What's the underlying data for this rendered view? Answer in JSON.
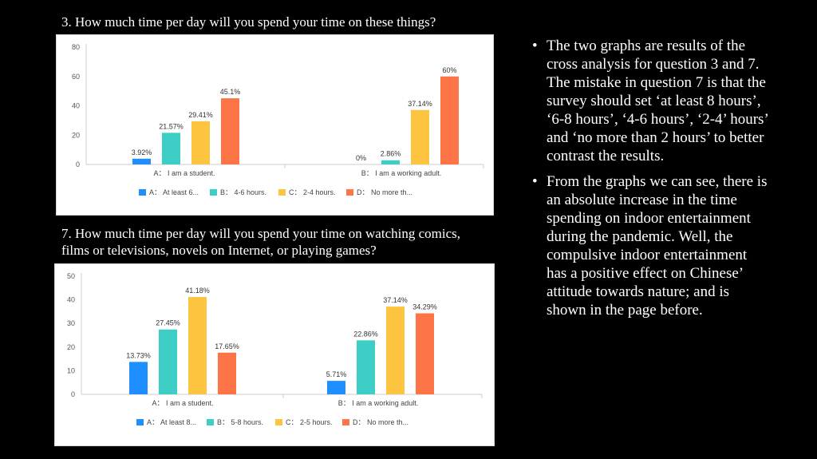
{
  "q3_title": "3. How much time per day will you spend your time on these things?",
  "q7_title": "7. How much time per day will you spend your time on watching comics, films or televisions, novels on Internet, or playing games?",
  "bullets": [
    "The two graphs are results of the cross analysis for question 3 and 7. The mistake in question 7 is that the survey should set ‘at least 8 hours’, ‘6-8 hours’, ‘4-6 hours’, ‘2-4’ hours’ and ‘no more than 2 hours’ to better contrast the results.",
    "From the graphs we can see, there is an absolute increase in the time spending on indoor entertainment during the pandemic. Well, the compulsive indoor entertainment has a positive effect on Chinese’ attitude towards nature; and is shown in the page before."
  ],
  "chart_data": [
    {
      "type": "bar",
      "categories": [
        "A： I am a student.",
        "B： I am a working adult."
      ],
      "series": [
        {
          "name": "A： At least 6...",
          "color": "#1f8fff",
          "values": [
            3.92,
            0
          ],
          "labels": [
            "3.92%",
            "0%"
          ]
        },
        {
          "name": "B： 4-6 hours.",
          "color": "#3dcfc6",
          "values": [
            21.57,
            2.86
          ],
          "labels": [
            "21.57%",
            "2.86%"
          ]
        },
        {
          "name": "C： 2-4 hours.",
          "color": "#fdc43f",
          "values": [
            29.41,
            37.14
          ],
          "labels": [
            "29.41%",
            "37.14%"
          ]
        },
        {
          "name": "D： No more th...",
          "color": "#fd7447",
          "values": [
            45.1,
            60
          ],
          "labels": [
            "45.1%",
            "60%"
          ]
        }
      ],
      "yticks": [
        "0",
        "20",
        "40",
        "60",
        "80"
      ],
      "ylim": [
        0,
        80
      ],
      "legend": "bottom",
      "grid": false
    },
    {
      "type": "bar",
      "categories": [
        "A： I am a student.",
        "B： I am a working adult."
      ],
      "series": [
        {
          "name": "A： At least 8...",
          "color": "#1f8fff",
          "values": [
            13.73,
            5.71
          ],
          "labels": [
            "13.73%",
            "5.71%"
          ]
        },
        {
          "name": "B： 5-8 hours.",
          "color": "#3dcfc6",
          "values": [
            27.45,
            22.86
          ],
          "labels": [
            "27.45%",
            "22.86%"
          ]
        },
        {
          "name": "C： 2-5 hours.",
          "color": "#fdc43f",
          "values": [
            41.18,
            37.14
          ],
          "labels": [
            "41.18%",
            "37.14%"
          ]
        },
        {
          "name": "D： No more th...",
          "color": "#fd7447",
          "values": [
            17.65,
            34.29
          ],
          "labels": [
            "17.65%",
            "34.29%"
          ]
        }
      ],
      "yticks": [
        "0",
        "10",
        "20",
        "30",
        "40",
        "50"
      ],
      "ylim": [
        0,
        50
      ],
      "legend": "bottom",
      "grid": false
    }
  ]
}
